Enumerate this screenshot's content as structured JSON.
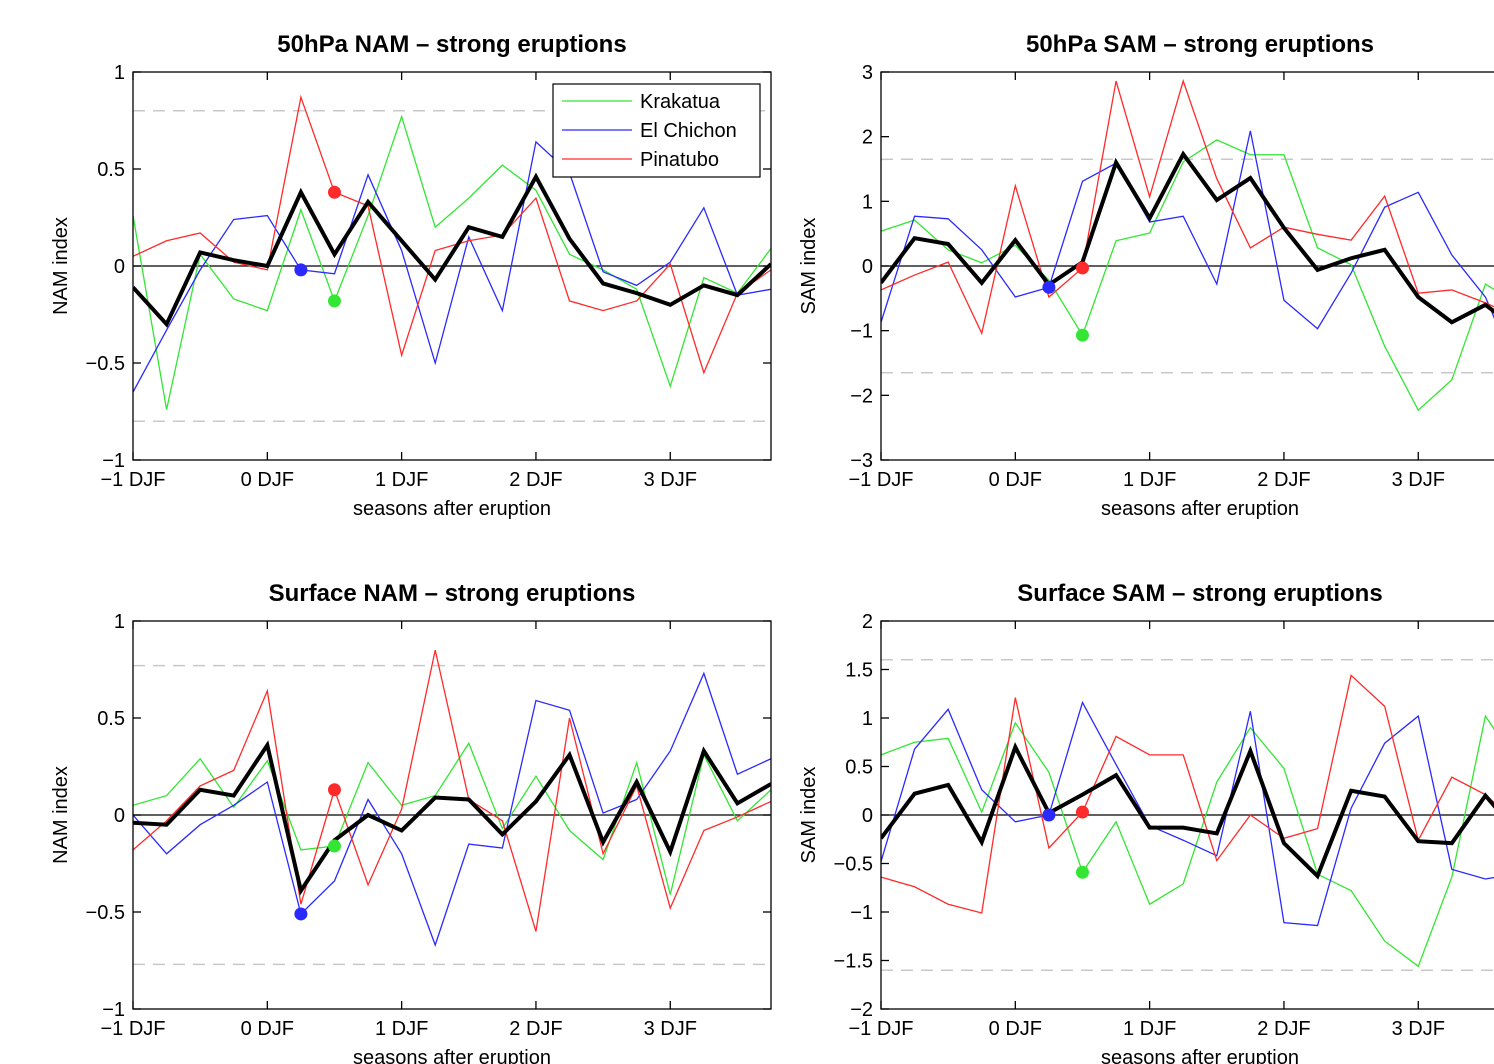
{
  "chart_data": [
    {
      "type": "line",
      "title": "50hPa NAM – strong eruptions",
      "xlabel": "seasons after eruption",
      "ylabel": "NAM index",
      "x": [
        -1,
        -0.75,
        -0.5,
        -0.25,
        0,
        0.25,
        0.5,
        0.75,
        1,
        1.25,
        1.5,
        1.75,
        2,
        2.25,
        2.5,
        2.75,
        3,
        3.25,
        3.5,
        3.75
      ],
      "xlim": [
        -1,
        3.75
      ],
      "xticks": [
        {
          "value": -1,
          "label": "−1 DJF"
        },
        {
          "value": 0,
          "label": "0 DJF"
        },
        {
          "value": 1,
          "label": "1 DJF"
        },
        {
          "value": 2,
          "label": "2 DJF"
        },
        {
          "value": 3,
          "label": "3 DJF"
        }
      ],
      "ylim": [
        -1,
        1
      ],
      "yticks": [
        {
          "value": -1,
          "label": "−1"
        },
        {
          "value": -0.5,
          "label": "−0.5"
        },
        0,
        0.5,
        1
      ],
      "threshold": 0.8,
      "zero_line": true,
      "legend": "upper right",
      "series": [
        {
          "name": "Krakatua",
          "color": "#33e633",
          "linewidth": 1.3,
          "eruption_x": 0.5,
          "values": [
            0.26,
            -0.74,
            0.06,
            -0.17,
            -0.23,
            0.29,
            -0.18,
            0.26,
            0.77,
            0.2,
            0.35,
            0.52,
            0.39,
            0.06,
            -0.02,
            -0.12,
            -0.62,
            -0.06,
            -0.14,
            0.09
          ]
        },
        {
          "name": "El Chichon",
          "color": "#2a2aff",
          "linewidth": 1.3,
          "eruption_x": 0.25,
          "values": [
            -0.65,
            -0.33,
            -0.02,
            0.24,
            0.26,
            -0.02,
            -0.04,
            0.47,
            0.08,
            -0.5,
            0.15,
            -0.23,
            0.64,
            0.48,
            -0.03,
            -0.1,
            0.02,
            0.3,
            -0.15,
            -0.12
          ]
        },
        {
          "name": "Pinatubo",
          "color": "#ff2a2a",
          "linewidth": 1.3,
          "eruption_x": 0.5,
          "values": [
            0.05,
            0.13,
            0.17,
            0.02,
            -0.02,
            0.87,
            0.38,
            0.31,
            -0.46,
            0.08,
            0.13,
            0.16,
            0.35,
            -0.18,
            -0.23,
            -0.18,
            0.01,
            -0.55,
            -0.14,
            -0.02
          ]
        },
        {
          "color": "#000000",
          "linewidth": 4,
          "values": [
            -0.11,
            -0.3,
            0.07,
            0.03,
            0.0,
            0.38,
            0.06,
            0.33,
            0.13,
            -0.07,
            0.2,
            0.15,
            0.46,
            0.14,
            -0.09,
            -0.14,
            -0.2,
            -0.1,
            -0.15,
            0.01
          ]
        }
      ]
    },
    {
      "type": "line",
      "title": "50hPa SAM – strong eruptions",
      "xlabel": "seasons after eruption",
      "ylabel": "SAM index",
      "x": [
        -1,
        -0.75,
        -0.5,
        -0.25,
        0,
        0.25,
        0.5,
        0.75,
        1,
        1.25,
        1.5,
        1.75,
        2,
        2.25,
        2.5,
        2.75,
        3,
        3.25,
        3.5,
        3.75
      ],
      "xlim": [
        -1,
        3.75
      ],
      "xticks": [
        {
          "value": -1,
          "label": "−1 DJF"
        },
        {
          "value": 0,
          "label": "0 DJF"
        },
        {
          "value": 1,
          "label": "1 DJF"
        },
        {
          "value": 2,
          "label": "2 DJF"
        },
        {
          "value": 3,
          "label": "3 DJF"
        }
      ],
      "ylim": [
        -3,
        3
      ],
      "yticks": [
        {
          "value": -3,
          "label": "−3"
        },
        {
          "value": -2,
          "label": "−2"
        },
        {
          "value": -1,
          "label": "−1"
        },
        0,
        1,
        2,
        3
      ],
      "threshold": 1.65,
      "zero_line": true,
      "series": [
        {
          "color": "#33e633",
          "linewidth": 1.3,
          "eruption_x": 0.5,
          "values": [
            0.54,
            0.71,
            0.25,
            0.05,
            0.32,
            -0.22,
            -1.07,
            0.39,
            0.51,
            1.61,
            1.95,
            1.72,
            1.72,
            0.28,
            0.02,
            -1.24,
            -2.23,
            -1.76,
            -0.28,
            -0.6
          ]
        },
        {
          "color": "#2a2aff",
          "linewidth": 1.3,
          "eruption_x": 0.25,
          "values": [
            -0.87,
            0.77,
            0.73,
            0.25,
            -0.48,
            -0.33,
            1.31,
            1.59,
            0.68,
            0.77,
            -0.28,
            2.09,
            -0.53,
            -0.97,
            -0.11,
            0.91,
            1.14,
            0.17,
            -0.48,
            -1.7
          ]
        },
        {
          "color": "#ff2a2a",
          "linewidth": 1.3,
          "eruption_x": 0.5,
          "values": [
            -0.37,
            -0.14,
            0.06,
            -1.04,
            1.24,
            -0.48,
            -0.03,
            2.86,
            1.07,
            2.86,
            1.35,
            0.28,
            0.6,
            0.49,
            0.4,
            1.08,
            -0.42,
            -0.37,
            -0.57,
            -0.8
          ]
        },
        {
          "color": "#000000",
          "linewidth": 4,
          "values": [
            -0.26,
            0.43,
            0.34,
            -0.26,
            0.4,
            -0.29,
            0.06,
            1.6,
            0.74,
            1.73,
            1.02,
            1.36,
            0.59,
            -0.06,
            0.12,
            0.25,
            -0.48,
            -0.87,
            -0.6,
            -1.0
          ]
        }
      ]
    },
    {
      "type": "line",
      "title": "Surface NAM – strong eruptions",
      "xlabel": "seasons after eruption",
      "ylabel": "NAM index",
      "x": [
        -1,
        -0.75,
        -0.5,
        -0.25,
        0,
        0.25,
        0.5,
        0.75,
        1,
        1.25,
        1.5,
        1.75,
        2,
        2.25,
        2.5,
        2.75,
        3,
        3.25,
        3.5,
        3.75
      ],
      "xlim": [
        -1,
        3.75
      ],
      "xticks": [
        {
          "value": -1,
          "label": "−1 DJF"
        },
        {
          "value": 0,
          "label": "0 DJF"
        },
        {
          "value": 1,
          "label": "1 DJF"
        },
        {
          "value": 2,
          "label": "2 DJF"
        },
        {
          "value": 3,
          "label": "3 DJF"
        }
      ],
      "ylim": [
        -1,
        1
      ],
      "yticks": [
        {
          "value": -1,
          "label": "−1"
        },
        {
          "value": -0.5,
          "label": "−0.5"
        },
        0,
        0.5,
        1
      ],
      "threshold": 0.77,
      "zero_line": true,
      "series": [
        {
          "color": "#33e633",
          "linewidth": 1.3,
          "eruption_x": 0.5,
          "values": [
            0.05,
            0.1,
            0.29,
            0.04,
            0.28,
            -0.18,
            -0.16,
            0.27,
            0.05,
            0.1,
            0.37,
            -0.07,
            0.2,
            -0.08,
            -0.23,
            0.27,
            -0.41,
            0.31,
            -0.03,
            0.13
          ]
        },
        {
          "color": "#2a2aff",
          "linewidth": 1.3,
          "eruption_x": 0.25,
          "values": [
            0.0,
            -0.2,
            -0.05,
            0.05,
            0.17,
            -0.51,
            -0.34,
            0.08,
            -0.2,
            -0.67,
            -0.15,
            -0.17,
            0.59,
            0.54,
            0.01,
            0.08,
            0.33,
            0.73,
            0.21,
            0.29
          ]
        },
        {
          "color": "#ff2a2a",
          "linewidth": 1.3,
          "eruption_x": 0.5,
          "values": [
            -0.18,
            -0.03,
            0.15,
            0.23,
            0.64,
            -0.46,
            0.13,
            -0.36,
            0.03,
            0.85,
            0.08,
            -0.03,
            -0.6,
            0.5,
            -0.2,
            0.15,
            -0.48,
            -0.08,
            -0.01,
            0.07
          ]
        },
        {
          "color": "#000000",
          "linewidth": 4,
          "values": [
            -0.04,
            -0.05,
            0.13,
            0.1,
            0.36,
            -0.39,
            -0.13,
            0.0,
            -0.08,
            0.09,
            0.08,
            -0.1,
            0.07,
            0.31,
            -0.14,
            0.17,
            -0.19,
            0.33,
            0.06,
            0.16
          ]
        }
      ]
    },
    {
      "type": "line",
      "title": "Surface SAM – strong eruptions",
      "xlabel": "seasons after eruption",
      "ylabel": "SAM index",
      "x": [
        -1,
        -0.75,
        -0.5,
        -0.25,
        0,
        0.25,
        0.5,
        0.75,
        1,
        1.25,
        1.5,
        1.75,
        2,
        2.25,
        2.5,
        2.75,
        3,
        3.25,
        3.5,
        3.75
      ],
      "xlim": [
        -1,
        3.75
      ],
      "xticks": [
        {
          "value": -1,
          "label": "−1 DJF"
        },
        {
          "value": 0,
          "label": "0 DJF"
        },
        {
          "value": 1,
          "label": "1 DJF"
        },
        {
          "value": 2,
          "label": "2 DJF"
        },
        {
          "value": 3,
          "label": "3 DJF"
        }
      ],
      "ylim": [
        -2,
        2
      ],
      "yticks": [
        {
          "value": -2,
          "label": "−2"
        },
        {
          "value": -1.5,
          "label": "−1.5"
        },
        {
          "value": -1,
          "label": "−1"
        },
        {
          "value": -0.5,
          "label": "−0.5"
        },
        0,
        0.5,
        1,
        1.5,
        2
      ],
      "threshold": 1.6,
      "zero_line": true,
      "series": [
        {
          "color": "#33e633",
          "linewidth": 1.3,
          "eruption_x": 0.5,
          "values": [
            0.62,
            0.75,
            0.79,
            0.03,
            0.95,
            0.44,
            -0.59,
            -0.07,
            -0.92,
            -0.71,
            0.34,
            0.9,
            0.48,
            -0.61,
            -0.78,
            -1.3,
            -1.56,
            -0.64,
            1.02,
            0.5
          ]
        },
        {
          "color": "#2a2aff",
          "linewidth": 1.3,
          "eruption_x": 0.25,
          "values": [
            -0.48,
            0.68,
            1.09,
            0.26,
            -0.07,
            0.0,
            1.16,
            0.52,
            -0.11,
            -0.26,
            -0.42,
            1.07,
            -1.11,
            -1.14,
            0.07,
            0.74,
            1.02,
            -0.56,
            -0.66,
            -0.6
          ]
        },
        {
          "color": "#ff2a2a",
          "linewidth": 1.3,
          "eruption_x": 0.5,
          "values": [
            -0.64,
            -0.74,
            -0.92,
            -1.01,
            1.21,
            -0.34,
            0.03,
            0.81,
            0.62,
            0.62,
            -0.47,
            0.0,
            -0.24,
            -0.14,
            1.44,
            1.12,
            -0.26,
            0.39,
            0.21,
            -0.1
          ]
        },
        {
          "color": "#000000",
          "linewidth": 4,
          "values": [
            -0.24,
            0.22,
            0.31,
            -0.28,
            0.7,
            0.02,
            0.21,
            0.41,
            -0.13,
            -0.13,
            -0.19,
            0.66,
            -0.29,
            -0.63,
            0.25,
            0.19,
            -0.27,
            -0.29,
            0.2,
            -0.2
          ]
        }
      ]
    }
  ]
}
